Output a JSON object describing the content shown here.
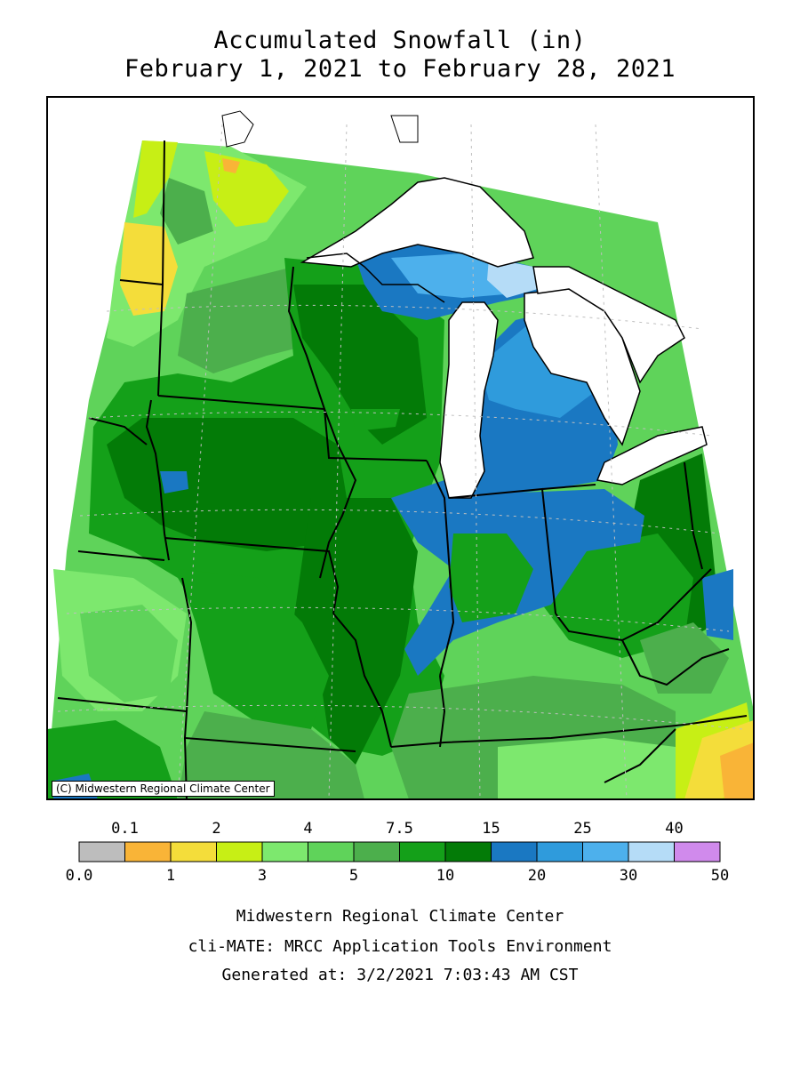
{
  "title_line1": "Accumulated Snowfall (in)",
  "title_line2": "February 1, 2021 to February 28, 2021",
  "credit": "(C) Midwestern Regional Climate Center",
  "legend": {
    "top_labels": [
      "0.1",
      "2",
      "4",
      "7.5",
      "15",
      "25",
      "40"
    ],
    "bottom_labels": [
      "0.0",
      "1",
      "3",
      "5",
      "10",
      "20",
      "30",
      "50"
    ],
    "bins": [
      {
        "color": "#bdbdbd"
      },
      {
        "color": "#f9b437"
      },
      {
        "color": "#f4dd3a"
      },
      {
        "color": "#c7ef15"
      },
      {
        "color": "#7de86e"
      },
      {
        "color": "#5fd35a"
      },
      {
        "color": "#4caf4c"
      },
      {
        "color": "#14a019"
      },
      {
        "color": "#037b07"
      },
      {
        "color": "#1a78c2"
      },
      {
        "color": "#2f9bdc"
      },
      {
        "color": "#4db0ec"
      },
      {
        "color": "#b5dcf7"
      },
      {
        "color": "#d08aec"
      }
    ]
  },
  "footer": {
    "line1": "Midwestern Regional Climate Center",
    "line2": "cli-MATE: MRCC Application Tools Environment",
    "line3": "Generated at: 3/2/2021 7:03:43 AM CST"
  }
}
